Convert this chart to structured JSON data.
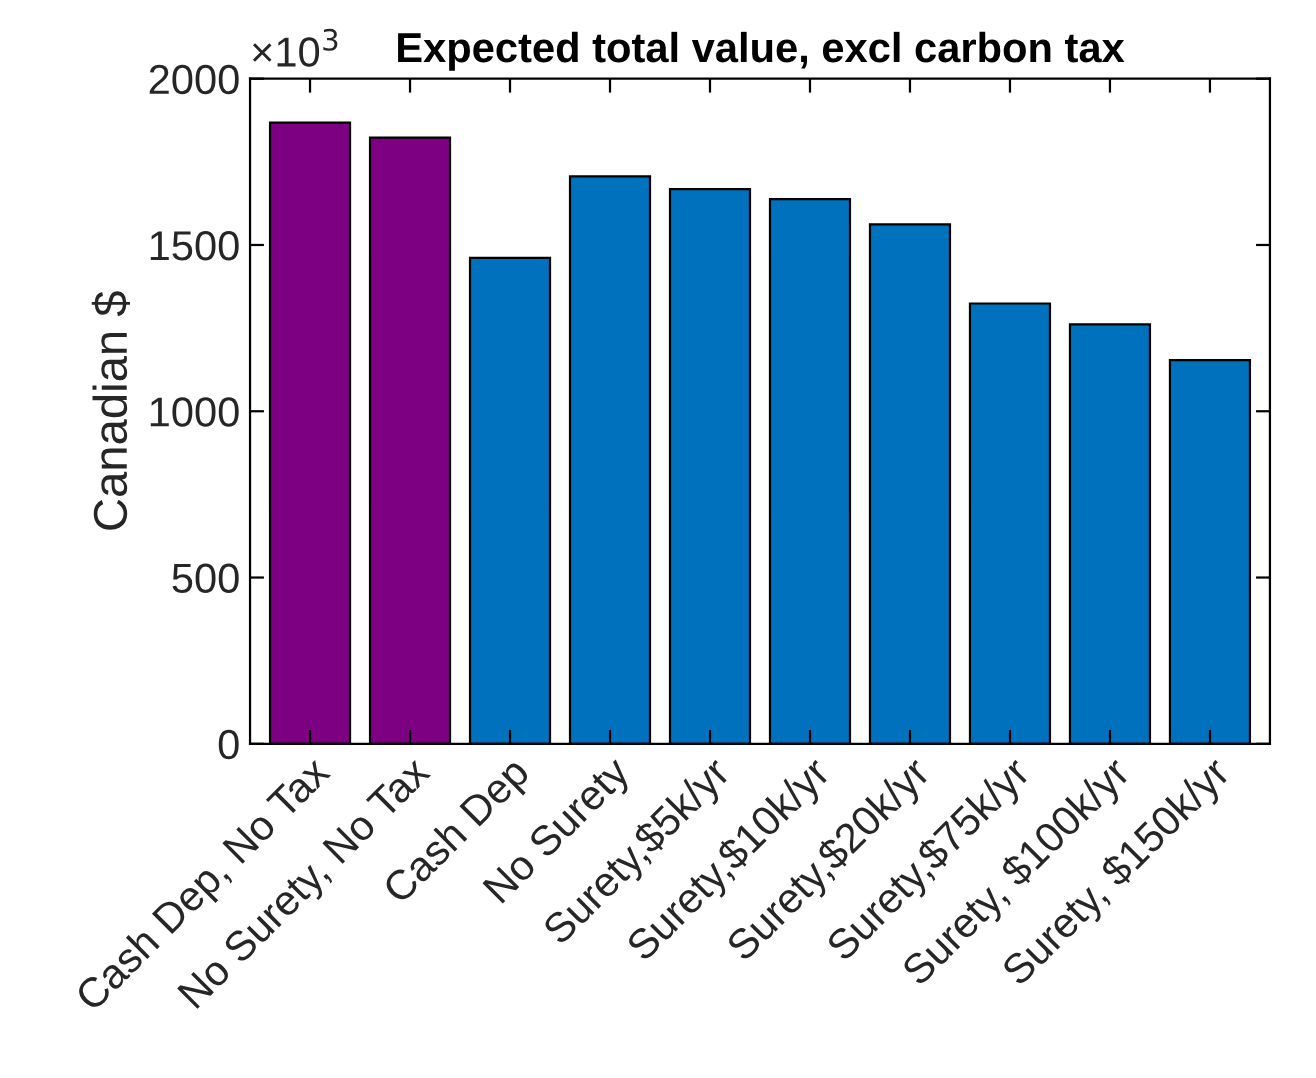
{
  "chart_data": {
    "type": "bar",
    "title": "Expected total value, excl carbon tax",
    "ylabel": "Canadian $",
    "annotations": [
      "×10$^{3}$"
    ],
    "categories": [
      "Cash Dep, No Tax",
      "No Surety, No Tax",
      "Cash Dep",
      "No Surety",
      "Surety,$5k/yr",
      "Surety,$10k/yr",
      "Surety,$20k/yr",
      "Surety,$75k/yr",
      "Surety, $100k/yr",
      "Surety, $150k/yr"
    ],
    "values": [
      1868,
      1823,
      1461,
      1706,
      1668,
      1638,
      1562,
      1324,
      1261,
      1154
    ],
    "colors": [
      "#7e0082",
      "#7e0082",
      "#0072bd",
      "#0072bd",
      "#0072bd",
      "#0072bd",
      "#0072bd",
      "#0072bd",
      "#0072bd",
      "#0072bd"
    ],
    "ylim": [
      0,
      2000
    ],
    "yticks": [
      0,
      500,
      1000,
      1500,
      2000
    ],
    "grid": false,
    "legend": false
  }
}
